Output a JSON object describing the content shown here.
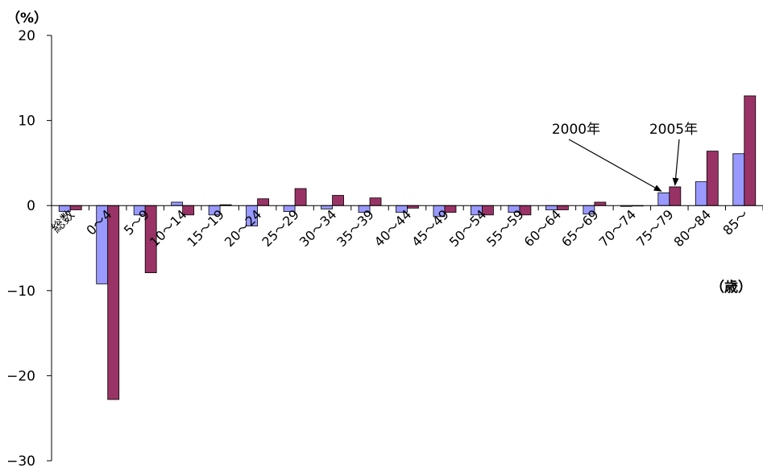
{
  "chart_data": {
    "type": "bar",
    "y_unit": "（%）",
    "x_unit": "（歳）",
    "ylim": [
      -30,
      20
    ],
    "yticks": [
      20,
      10,
      0,
      -10,
      -20,
      -30
    ],
    "ytick_labels": [
      "20",
      "10",
      "0",
      "−10",
      "−20",
      "−30"
    ],
    "categories": [
      "総数",
      "0～4",
      "5～9",
      "10～14",
      "15～19",
      "20～24",
      "25～29",
      "30～34",
      "35～39",
      "40～44",
      "45～49",
      "50～54",
      "55～59",
      "60～64",
      "65～69",
      "70～74",
      "75～79",
      "80～84",
      "85～"
    ],
    "series": [
      {
        "name": "2000年",
        "color": "#9999ff",
        "values": [
          -0.7,
          -9.2,
          -1.1,
          0.4,
          -1.1,
          -2.4,
          -0.7,
          -0.4,
          -0.8,
          -0.8,
          -1.3,
          -1.1,
          -0.8,
          -0.5,
          -1.0,
          -0.1,
          1.5,
          2.8,
          6.1
        ]
      },
      {
        "name": "2005年",
        "color": "#993366",
        "values": [
          -0.5,
          -22.8,
          -7.9,
          -1.1,
          0.1,
          0.8,
          2.0,
          1.2,
          0.9,
          -0.3,
          -0.8,
          -1.1,
          -1.1,
          -0.5,
          0.4,
          0.0,
          2.2,
          6.4,
          12.9
        ]
      }
    ],
    "annotations": [
      {
        "text": "2000年",
        "series": "2000年",
        "category": "75～79"
      },
      {
        "text": "2005年",
        "series": "2005年",
        "category": "75～79"
      }
    ],
    "grid": false,
    "legend": "none (series labelled by annotation arrows)"
  }
}
